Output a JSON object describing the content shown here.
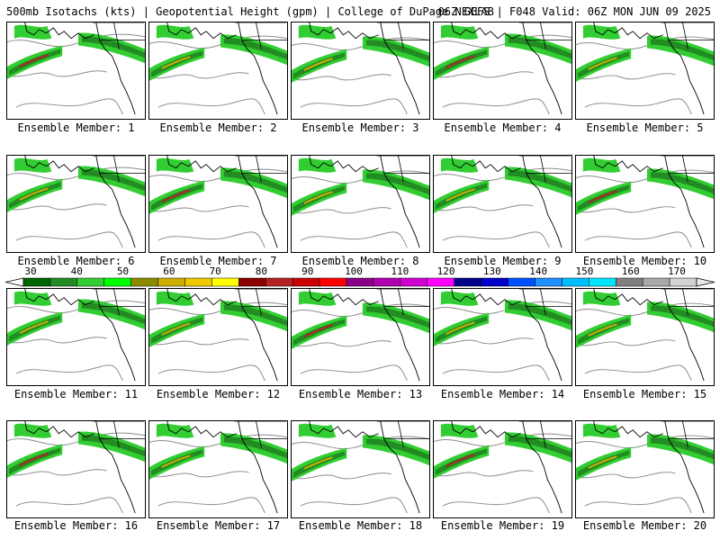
{
  "header": {
    "left": "500mb Isotachs (kts) | Geopotential Height (gpm) | College of DuPage NEXLAB",
    "right": "06Z GEFS | F048 Valid: 06Z MON JUN 09 2025"
  },
  "panels": [
    {
      "label": "Ensemble Member: 1"
    },
    {
      "label": "Ensemble Member: 2"
    },
    {
      "label": "Ensemble Member: 3"
    },
    {
      "label": "Ensemble Member: 4"
    },
    {
      "label": "Ensemble Member: 5"
    },
    {
      "label": "Ensemble Member: 6"
    },
    {
      "label": "Ensemble Member: 7"
    },
    {
      "label": "Ensemble Member: 8"
    },
    {
      "label": "Ensemble Member: 9"
    },
    {
      "label": "Ensemble Member: 10"
    },
    {
      "label": "Ensemble Member: 11"
    },
    {
      "label": "Ensemble Member: 12"
    },
    {
      "label": "Ensemble Member: 13"
    },
    {
      "label": "Ensemble Member: 14"
    },
    {
      "label": "Ensemble Member: 15"
    },
    {
      "label": "Ensemble Member: 16"
    },
    {
      "label": "Ensemble Member: 17"
    },
    {
      "label": "Ensemble Member: 18"
    },
    {
      "label": "Ensemble Member: 19"
    },
    {
      "label": "Ensemble Member: 20"
    }
  ],
  "colorbar": {
    "labels": [
      "30",
      "40",
      "50",
      "60",
      "70",
      "80",
      "90",
      "100",
      "110",
      "120",
      "130",
      "140",
      "150",
      "160",
      "170"
    ],
    "colors": [
      "#006400",
      "#228b22",
      "#32cd32",
      "#00ff00",
      "#8b8b00",
      "#cdad00",
      "#eec900",
      "#ffff00",
      "#8b0000",
      "#b22222",
      "#cd0000",
      "#ff0000",
      "#8b008b",
      "#b000b0",
      "#d000d0",
      "#ff00ff",
      "#00008b",
      "#0000cd",
      "#0050ff",
      "#1e90ff",
      "#00bfff",
      "#00e5ff",
      "#808080",
      "#a9a9a9",
      "#d3d3d3"
    ]
  }
}
